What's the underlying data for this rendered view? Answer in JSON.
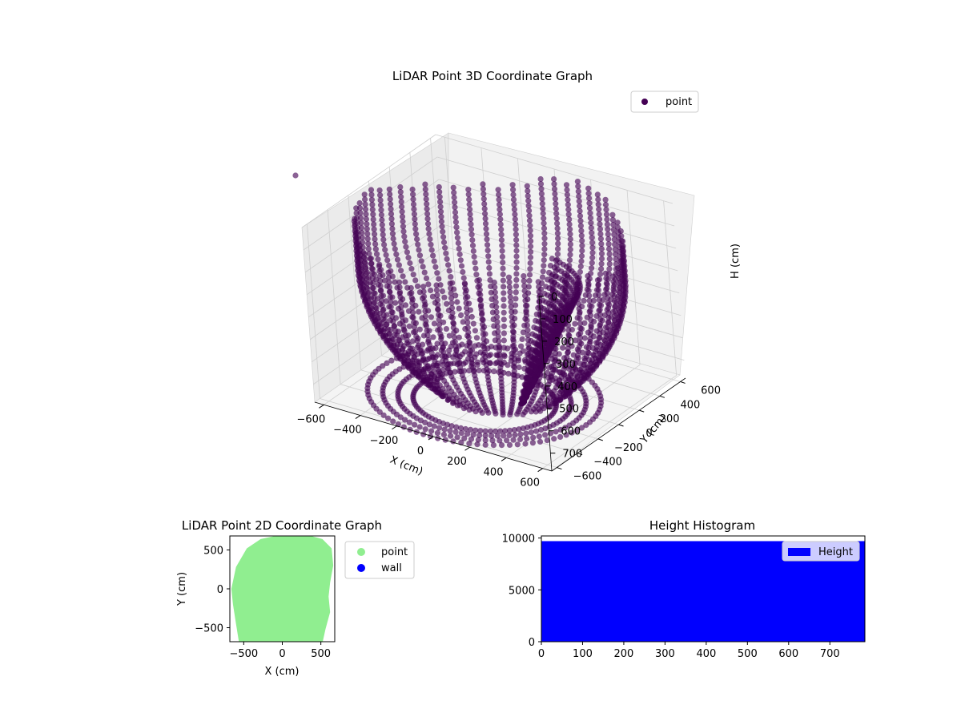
{
  "chart_data": [
    {
      "type": "scatter3d",
      "title": "LiDAR Point 3D Coordinate Graph",
      "xlabel": "X (cm)",
      "ylabel": "Y (cm)",
      "zlabel": "H (cm)",
      "x_ticks": [
        "−600",
        "−400",
        "−200",
        "0",
        "200",
        "400",
        "600"
      ],
      "y_ticks": [
        "−600",
        "−400",
        "−200",
        "0",
        "200",
        "400",
        "600"
      ],
      "z_ticks": [
        "0",
        "100",
        "200",
        "300",
        "400",
        "500",
        "600",
        "700"
      ],
      "xlim": [
        -650,
        650
      ],
      "ylim": [
        -650,
        650
      ],
      "zlim": [
        0,
        780
      ],
      "z_inverted": true,
      "grid": true,
      "legend": {
        "placement": "top-right",
        "entries": [
          "point"
        ]
      },
      "series": [
        {
          "name": "point",
          "color": "#440154"
        }
      ],
      "outlier": {
        "x": -620,
        "y": 640,
        "z": 790
      }
    },
    {
      "type": "scatter",
      "title": "LiDAR Point 2D Coordinate Graph",
      "xlabel": "X (cm)",
      "ylabel": "Y (cm)",
      "x_ticks": [
        "−500",
        "0",
        "500"
      ],
      "y_ticks": [
        "−500",
        "0",
        "500"
      ],
      "xlim": [
        -680,
        680
      ],
      "ylim": [
        -680,
        680
      ],
      "legend": {
        "placement": "outside-right",
        "entries": [
          "point",
          "wall"
        ]
      },
      "series": [
        {
          "name": "point",
          "color": "#90ee90"
        },
        {
          "name": "wall",
          "color": "#0000ff"
        }
      ]
    },
    {
      "type": "bar",
      "title": "Height Histogram",
      "x_ticks": [
        "0",
        "100",
        "200",
        "300",
        "400",
        "500",
        "600",
        "700"
      ],
      "y_ticks": [
        "0",
        "5000",
        "10000"
      ],
      "xlim": [
        0,
        785
      ],
      "ylim": [
        0,
        10200
      ],
      "bins": {
        "start": 0,
        "end": 785,
        "count": 785,
        "value": 9700
      },
      "legend": {
        "placement": "top-right",
        "entries": [
          "Height"
        ]
      },
      "series": [
        {
          "name": "Height",
          "color": "#0000ff"
        }
      ]
    }
  ]
}
